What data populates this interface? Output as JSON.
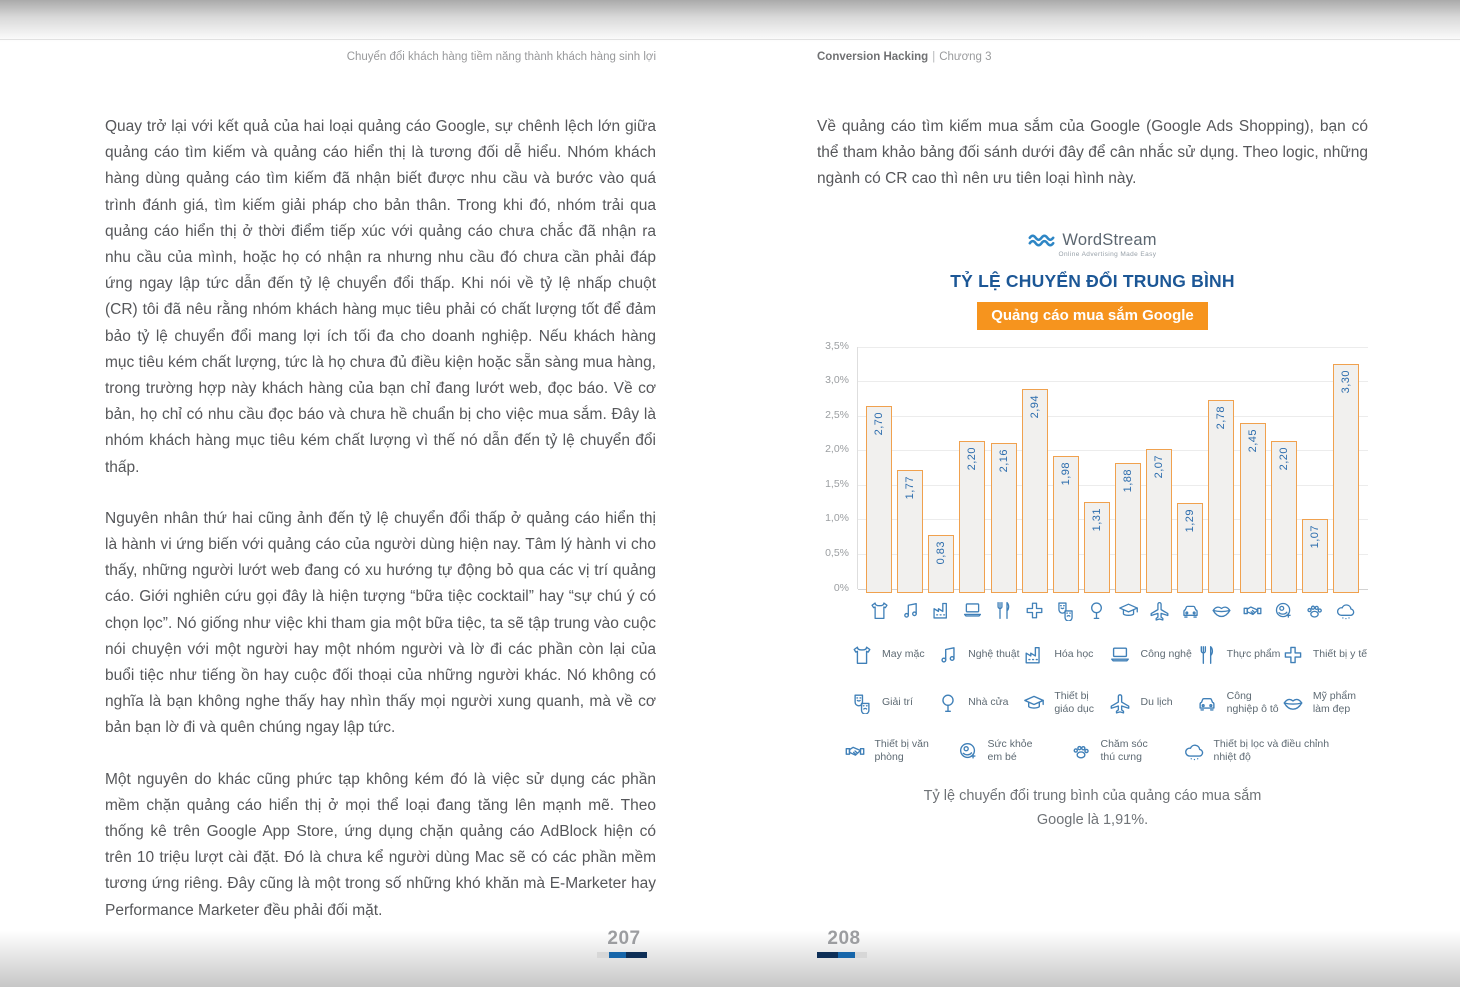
{
  "page_left": {
    "header": "Chuyển đổi khách hàng tiềm năng thành khách hàng sinh lợi",
    "paragraphs": [
      "Quay trở lại với kết quả của hai loại quảng cáo Google, sự chênh lệch lớn giữa quảng cáo tìm kiếm và quảng cáo hiển thị là tương đối dễ hiểu. Nhóm khách hàng dùng quảng cáo tìm kiếm đã nhận biết được nhu cầu và bước vào quá trình đánh giá, tìm kiếm giải pháp cho bản thân. Trong khi đó, nhóm trải qua quảng cáo hiển thị ở thời điểm tiếp xúc với quảng cáo chưa chắc đã nhận ra nhu cầu của mình, hoặc họ có nhận ra nhưng nhu cầu đó chưa cần phải đáp ứng ngay lập tức dẫn đến tỷ lệ chuyển đổi thấp. Khi nói về tỷ lệ nhấp chuột (CR) tôi đã nêu rằng nhóm khách hàng mục tiêu phải có chất lượng tốt để đảm bảo tỷ lệ chuyển đổi mang lợi ích tối đa cho doanh nghiệp. Nếu khách hàng mục tiêu kém chất lượng, tức là họ chưa đủ điều kiện hoặc sẵn sàng mua hàng, trong trường hợp này khách hàng của bạn chỉ đang lướt web, đọc báo. Về cơ bản, họ chỉ có nhu cầu đọc báo và chưa hề chuẩn bị cho việc mua sắm. Đây là nhóm khách hàng mục tiêu kém chất lượng vì thế nó dẫn đến tỷ lệ chuyển đổi thấp.",
      "Nguyên nhân thứ hai cũng ảnh đến tỷ lệ chuyển đổi thấp ở quảng cáo hiển thị là hành vi ứng biến với quảng cáo của người dùng hiện nay. Tâm lý hành vi cho thấy, những người lướt web đang có xu hướng tự động bỏ qua các vị trí quảng cáo. Giới nghiên cứu gọi đây là hiện tượng “bữa tiệc cocktail” hay “sự chú ý có chọn lọc”. Nó giống như việc khi tham gia một bữa tiệc, ta sẽ tập trung vào cuộc nói chuyện với một người hay một nhóm người và lờ đi các phần còn lại của buổi tiệc như tiếng ồn hay cuộc đối thoại của những người khác. Nó không có nghĩa là bạn không nghe thấy hay nhìn thấy mọi người xung quanh, mà về cơ bản bạn lờ đi và quên chúng ngay lập tức.",
      "Một nguyên do khác cũng phức tạp không kém đó là việc sử dụng các phần mềm chặn quảng cáo hiển thị ở mọi thể loại đang tăng lên mạnh mẽ. Theo thống kê trên Google App Store, ứng dụng chặn quảng cáo AdBlock hiện có trên 10 triệu lượt cài đặt. Đó là chưa kể người dùng Mac sẽ có các phần mềm tương ứng riêng. Đây cũng là một trong số những khó khăn mà E-Marketer hay Performance Marketer đều phải đối mặt."
    ],
    "page_number": "207"
  },
  "page_right": {
    "header_title": "Conversion Hacking",
    "header_sep": "|",
    "header_chapter": "Chương 3",
    "intro": "Về quảng cáo tìm kiếm mua sắm của Google (Google Ads Shopping), bạn có thể tham khảo bảng đối sánh dưới đây để cân nhắc sử dụng. Theo logic, những ngành có CR cao thì nên ưu tiên loại hình này.",
    "logo": {
      "name": "WordStream",
      "tagline": "Online Advertising Made Easy",
      "icon": "wave-logo-icon"
    },
    "chart_title": "TỶ LỆ CHUYỂN ĐỔI TRUNG BÌNH",
    "chart_badge": "Quảng cáo mua sắm Google",
    "caption_line1": "Tỷ lệ chuyển đổi trung bình của quảng cáo mua sắm",
    "caption_line2": "Google là 1,91%.",
    "page_number": "208"
  },
  "chart_data": {
    "type": "bar",
    "title": "TỶ LỆ CHUYỂN ĐỔI TRUNG BÌNH",
    "subtitle": "Quảng cáo mua sắm Google",
    "xlabel": "",
    "ylabel": "",
    "ylim": [
      0,
      3.5
    ],
    "grid": true,
    "ytick_labels": [
      "3,5%",
      "3,0%",
      "2,5%",
      "2,0%",
      "1,5%",
      "1,0%",
      "0,5%",
      "0%"
    ],
    "categories": [
      "May mặc",
      "Nghệ thuật",
      "Hóa học",
      "Công nghệ",
      "Thực phẩm",
      "Thiết bị y tế",
      "Giải trí",
      "Nhà cửa",
      "Thiết bị giáo dục",
      "Du lịch",
      "Công nghiệp ô tô",
      "Mỹ phẩm làm đẹp",
      "Thiết bị văn phòng",
      "Sức khỏe em bé",
      "Chăm sóc thú cưng",
      "Thiết bị lọc và điều chỉnh nhiệt độ"
    ],
    "values": [
      2.7,
      1.77,
      0.83,
      2.2,
      2.16,
      2.94,
      1.98,
      1.31,
      1.88,
      2.07,
      1.29,
      2.78,
      2.45,
      2.2,
      1.07,
      3.3
    ],
    "value_labels": [
      "2,70",
      "1,77",
      "0,83",
      "2,20",
      "2,16",
      "2,94",
      "1,98",
      "1,31",
      "1,88",
      "2,07",
      "1,29",
      "2,78",
      "2,45",
      "2,20",
      "1,07",
      "3,30"
    ],
    "icons": [
      "tshirt-icon",
      "music-note-icon",
      "factory-icon",
      "laptop-icon",
      "utensils-icon",
      "medical-cross-icon",
      "theater-masks-icon",
      "tree-icon",
      "graduation-cap-icon",
      "airplane-icon",
      "car-icon",
      "lips-icon",
      "handshake-icon",
      "baby-icon",
      "paw-icon",
      "cloud-rain-icon"
    ],
    "average_note": "1,91%",
    "legend_position": "bottom",
    "colors": {
      "bar_fill": "#f1f0ee",
      "bar_border": "#f0a14e",
      "value_label": "#2b6cad",
      "icon": "#4080b8",
      "title": "#1c5796",
      "badge_bg": "#f6941e",
      "badge_text": "#ffffff"
    }
  }
}
